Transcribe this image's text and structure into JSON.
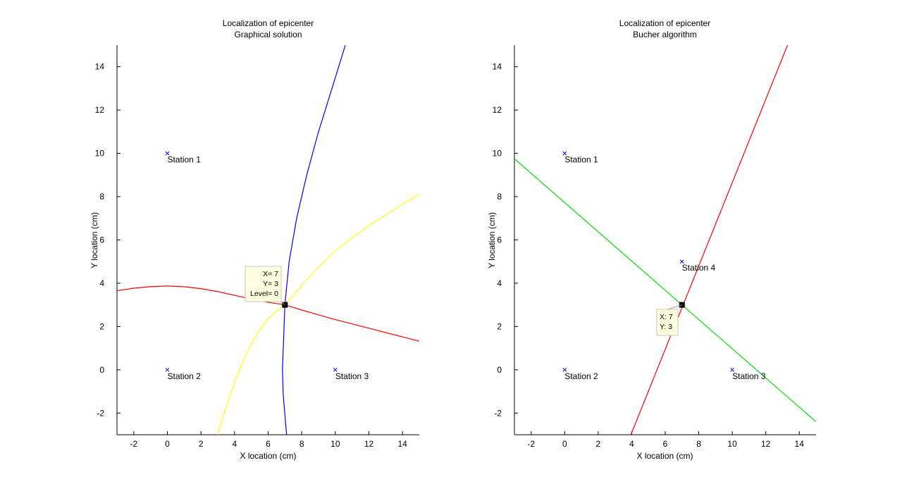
{
  "chart_data": [
    {
      "type": "line",
      "title": [
        "Localization of epicenter",
        "Graphical solution"
      ],
      "xlabel": "X location (cm)",
      "ylabel": "Y location (cm)",
      "xlim": [
        -3,
        15
      ],
      "ylim": [
        -3,
        15
      ],
      "x_ticks": [
        -2,
        0,
        2,
        4,
        6,
        8,
        10,
        12,
        14
      ],
      "y_ticks": [
        -2,
        0,
        2,
        4,
        6,
        8,
        10,
        12,
        14
      ],
      "grid": false,
      "stations": [
        {
          "label": "Station 1",
          "x": 0,
          "y": 10
        },
        {
          "label": "Station 2",
          "x": 0,
          "y": 0
        },
        {
          "label": "Station 3",
          "x": 10,
          "y": 0
        }
      ],
      "series": [
        {
          "color": "#0000ff",
          "points": [
            [
              7.1,
              -3
            ],
            [
              6.9,
              -1.2
            ],
            [
              6.85,
              0
            ],
            [
              6.9,
              1
            ],
            [
              7,
              3
            ],
            [
              7.25,
              5
            ],
            [
              7.7,
              7
            ],
            [
              8.3,
              9
            ],
            [
              9,
              11
            ],
            [
              9.8,
              13
            ],
            [
              10.6,
              15
            ]
          ]
        },
        {
          "color": "#ff0000",
          "points": [
            [
              -3,
              3.65
            ],
            [
              -2,
              3.77
            ],
            [
              -1,
              3.84
            ],
            [
              0,
              3.87
            ],
            [
              1,
              3.84
            ],
            [
              2,
              3.75
            ],
            [
              3,
              3.61
            ],
            [
              4,
              3.44
            ],
            [
              5,
              3.27
            ],
            [
              6,
              3.12
            ],
            [
              7,
              3
            ],
            [
              8,
              2.76
            ],
            [
              9,
              2.54
            ],
            [
              10,
              2.32
            ],
            [
              11,
              2.12
            ],
            [
              12,
              1.92
            ],
            [
              13,
              1.72
            ],
            [
              14,
              1.52
            ],
            [
              15,
              1.32
            ]
          ]
        },
        {
          "color": "#ffff00",
          "points": [
            [
              3,
              -3
            ],
            [
              3.5,
              -1.7
            ],
            [
              4,
              -0.6
            ],
            [
              4.5,
              0.4
            ],
            [
              5,
              1.2
            ],
            [
              5.5,
              1.85
            ],
            [
              6,
              2.35
            ],
            [
              6.5,
              2.72
            ],
            [
              7,
              3
            ],
            [
              8,
              3.9
            ],
            [
              9,
              4.75
            ],
            [
              10,
              5.5
            ],
            [
              11,
              6.1
            ],
            [
              12,
              6.65
            ],
            [
              13,
              7.15
            ],
            [
              14,
              7.65
            ],
            [
              15,
              8.1
            ]
          ]
        }
      ],
      "epicenter": {
        "x": 7,
        "y": 3
      },
      "datatip": [
        "X= 7",
        "Y= 3",
        "Level= 0"
      ]
    },
    {
      "type": "line",
      "title": [
        "Localization of epicenter",
        "Bucher algorithm"
      ],
      "xlabel": "X location (cm)",
      "ylabel": "Y location (cm)",
      "xlim": [
        -3,
        15
      ],
      "ylim": [
        -3,
        15
      ],
      "x_ticks": [
        -2,
        0,
        2,
        4,
        6,
        8,
        10,
        12,
        14
      ],
      "y_ticks": [
        -2,
        0,
        2,
        4,
        6,
        8,
        10,
        12,
        14
      ],
      "grid": false,
      "stations": [
        {
          "label": "Station 1",
          "x": 0,
          "y": 10
        },
        {
          "label": "Station 2",
          "x": 0,
          "y": 0
        },
        {
          "label": "Station 3",
          "x": 10,
          "y": 0
        },
        {
          "label": "Station 4",
          "x": 7,
          "y": 5
        }
      ],
      "series": [
        {
          "color": "#00dd00",
          "points": [
            [
              -3,
              9.75
            ],
            [
              15,
              -2.4
            ]
          ]
        },
        {
          "color": "#ff0000",
          "points": [
            [
              3.95,
              -3
            ],
            [
              13.3,
              15
            ]
          ]
        }
      ],
      "epicenter": {
        "x": 7,
        "y": 3
      },
      "datatip": [
        "X: 7",
        "Y: 3"
      ]
    }
  ]
}
